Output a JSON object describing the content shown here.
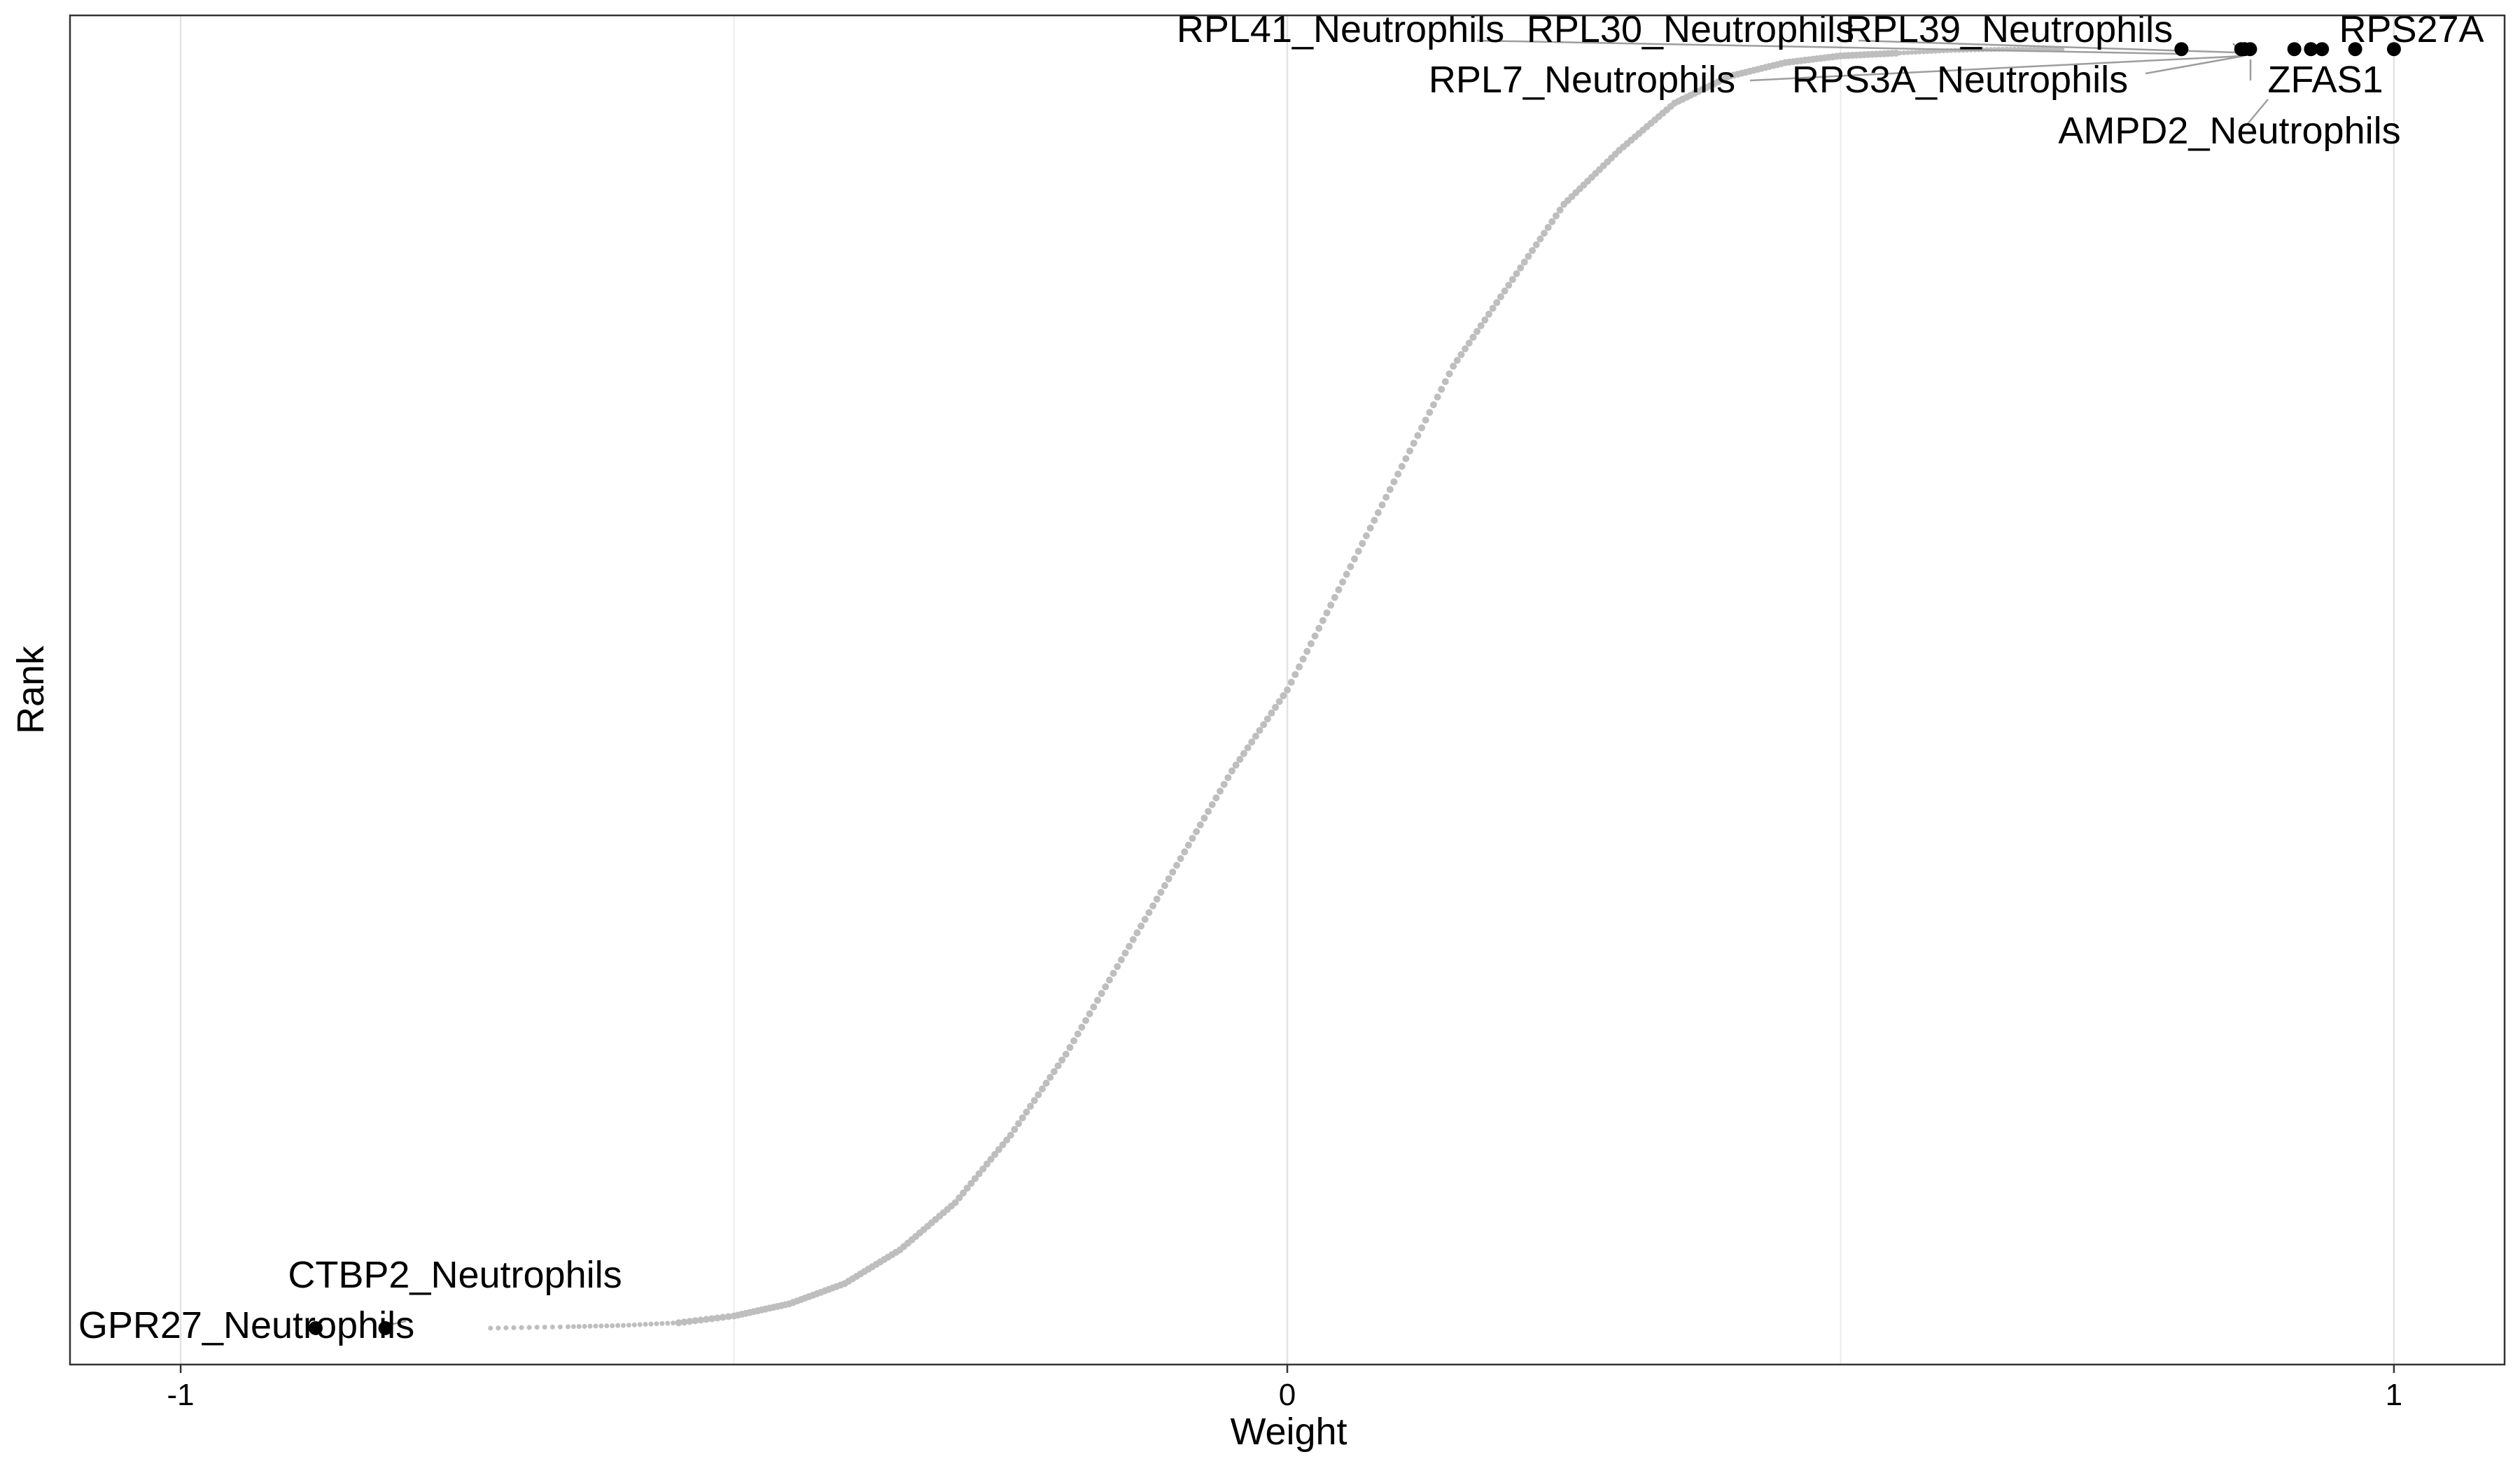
{
  "chart_data": {
    "type": "scatter",
    "title": "",
    "xlabel": "Weight",
    "ylabel": "Rank",
    "xlim": [
      -1.1,
      1.1
    ],
    "ylim": [
      0,
      1
    ],
    "x_ticks": [
      {
        "value": -1,
        "label": "-1"
      },
      {
        "value": 0,
        "label": "0"
      },
      {
        "value": 1,
        "label": "1"
      }
    ],
    "grid": "vertical major and minor lines",
    "background_series": {
      "name": "",
      "color": "#bebebe",
      "description_points": [
        [
          -0.72,
          0.027
        ],
        [
          -0.65,
          0.028
        ],
        [
          -0.6,
          0.029
        ],
        [
          -0.55,
          0.031
        ],
        [
          -0.5,
          0.036
        ],
        [
          -0.45,
          0.045
        ],
        [
          -0.4,
          0.06
        ],
        [
          -0.35,
          0.085
        ],
        [
          -0.3,
          0.12
        ],
        [
          -0.25,
          0.17
        ],
        [
          -0.2,
          0.23
        ],
        [
          -0.15,
          0.3
        ],
        [
          -0.1,
          0.37
        ],
        [
          -0.05,
          0.44
        ],
        [
          0.0,
          0.5
        ],
        [
          0.05,
          0.58
        ],
        [
          0.1,
          0.66
        ],
        [
          0.15,
          0.74
        ],
        [
          0.2,
          0.8
        ],
        [
          0.25,
          0.86
        ],
        [
          0.3,
          0.9
        ],
        [
          0.35,
          0.935
        ],
        [
          0.4,
          0.955
        ],
        [
          0.45,
          0.965
        ],
        [
          0.5,
          0.97
        ],
        [
          0.55,
          0.972
        ],
        [
          0.6,
          0.974
        ],
        [
          0.65,
          0.975
        ],
        [
          0.7,
          0.975
        ]
      ]
    },
    "highlighted_points": [
      {
        "label": "RPS27A",
        "x": 1.0,
        "y": 0.975
      },
      {
        "label": "ZFAS1",
        "x": 0.965,
        "y": 0.975
      },
      {
        "label": "AMPD2_Neutrophils",
        "x": 0.935,
        "y": 0.975
      },
      {
        "label": "",
        "x": 0.925,
        "y": 0.975
      },
      {
        "label": "RPL39_Neutrophils",
        "x": 0.91,
        "y": 0.975
      },
      {
        "label": "RPL30_Neutrophils",
        "x": 0.87,
        "y": 0.975
      },
      {
        "label": "RPS3A_Neutrophils",
        "x": 0.862,
        "y": 0.975
      },
      {
        "label": "RPL41_Neutrophils",
        "x": 0.808,
        "y": 0.975
      },
      {
        "label": "RPL7_Neutrophils",
        "x": 0.865,
        "y": 0.975
      },
      {
        "label": "CTBP2_Neutrophils",
        "x": -0.815,
        "y": 0.027
      },
      {
        "label": "GPR27_Neutrophils",
        "x": -0.878,
        "y": 0.027
      }
    ]
  }
}
